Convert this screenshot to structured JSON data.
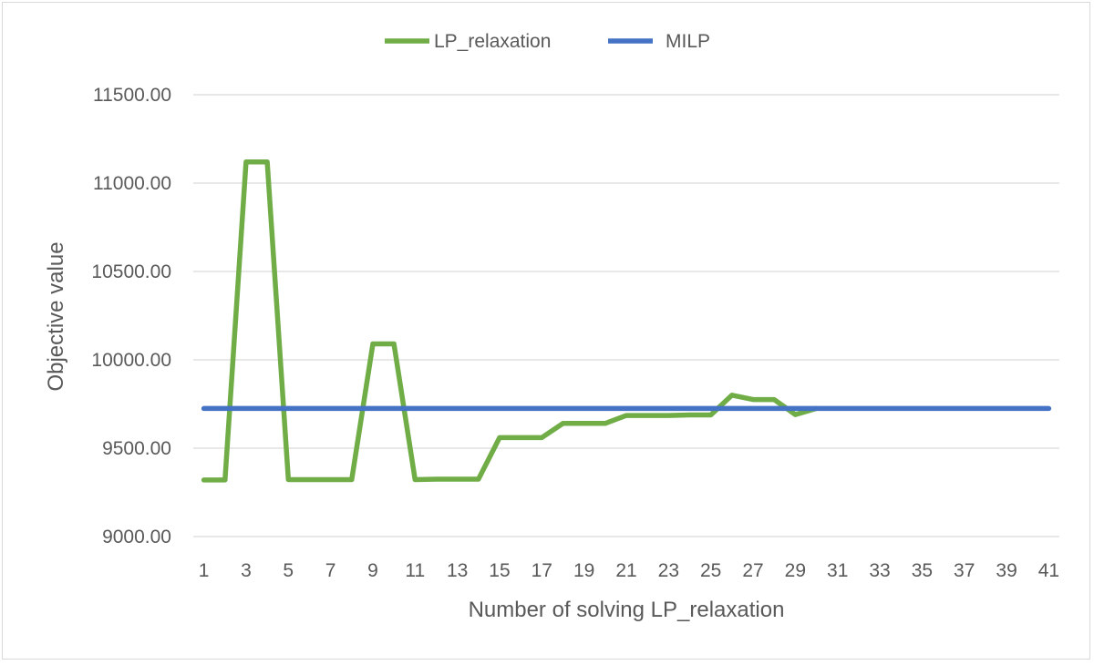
{
  "chart_data": {
    "type": "line",
    "title": "",
    "xlabel": "Number of solving LP_relaxation",
    "ylabel": "Objective value",
    "ylim": [
      9000,
      11500
    ],
    "y_ticks": [
      "9000.00",
      "9500.00",
      "10000.00",
      "10500.00",
      "11000.00",
      "11500.00"
    ],
    "x_tick_labels": [
      "1",
      "3",
      "5",
      "7",
      "9",
      "11",
      "13",
      "15",
      "17",
      "19",
      "21",
      "23",
      "25",
      "27",
      "29",
      "31",
      "33",
      "35",
      "37",
      "39",
      "41"
    ],
    "x_range": [
      1,
      41
    ],
    "grid": "horizontal",
    "legend_position": "top",
    "series": [
      {
        "name": "LP_relaxation",
        "color": "#70ad47",
        "x": [
          1,
          2,
          3,
          4,
          5,
          6,
          7,
          8,
          9,
          10,
          11,
          12,
          13,
          14,
          15,
          16,
          17,
          18,
          19,
          20,
          21,
          22,
          23,
          24,
          25,
          26,
          27,
          28,
          29,
          30
        ],
        "values": [
          9320,
          9320,
          11120,
          11120,
          9322,
          9322,
          9322,
          9322,
          10090,
          10090,
          9322,
          9325,
          9325,
          9325,
          9560,
          9560,
          9560,
          9640,
          9640,
          9640,
          9685,
          9685,
          9685,
          9688,
          9688,
          9800,
          9775,
          9775,
          9690,
          9725
        ]
      },
      {
        "name": "MILP",
        "color": "#4472c4",
        "x": [
          1,
          41
        ],
        "values": [
          9725,
          9725
        ]
      }
    ]
  }
}
